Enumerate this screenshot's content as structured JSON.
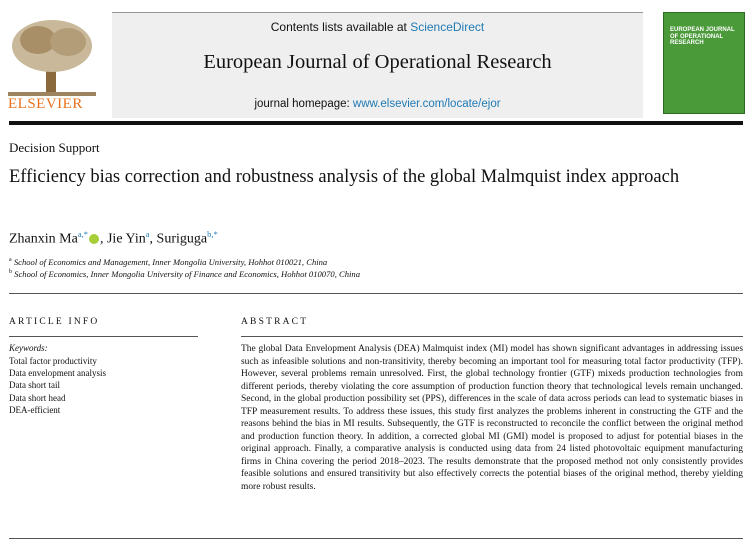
{
  "header": {
    "contents_prefix": "Contents lists available at",
    "contents_link": "ScienceDirect",
    "journal": "European Journal of Operational Research",
    "homepage_prefix": "journal homepage:",
    "homepage_url": "www.elsevier.com/locate/ejor",
    "publisher": "ELSEVIER",
    "cover_title": "EUROPEAN JOURNAL OF OPERATIONAL RESEARCH"
  },
  "article": {
    "section": "Decision Support",
    "title": "Efficiency bias correction and robustness analysis of the global Malmquist index approach",
    "authors": [
      {
        "name": "Zhanxin Ma",
        "affil": "a,*"
      },
      {
        "name": "Jie Yin",
        "affil": "a"
      },
      {
        "name": "Suriguga",
        "affil": "b,*"
      }
    ],
    "affiliations": [
      {
        "key": "a",
        "text": "School of Economics and Management, Inner Mongolia University, Hohhot 010021, China"
      },
      {
        "key": "b",
        "text": "School of Economics, Inner Mongolia University of Finance and Economics, Hohhot 010070, China"
      }
    ]
  },
  "article_info": {
    "heading": "ARTICLE INFO",
    "keywords_label": "Keywords:",
    "keywords": [
      "Total factor productivity",
      "Data envelopment analysis",
      "Data short tail",
      "Data short head",
      "DEA-efficient"
    ]
  },
  "abstract": {
    "heading": "ABSTRACT",
    "text": "The global Data Envelopment Analysis (DEA) Malmquist index (MI) model has shown significant advantages in addressing issues such as infeasible solutions and non-transitivity, thereby becoming an important tool for measuring total factor productivity (TFP). However, several problems remain unresolved. First, the global technology frontier (GTF) mixeds production technologies from different periods, thereby violating the core assumption of production function theory that technological levels remain unchanged. Second, in the global production possibility set (PPS), differences in the scale of data across periods can lead to systematic biases in TFP measurement results. To address these issues, this study first analyzes the problems inherent in constructing the GTF and the reasons behind the bias in MI results. Subsequently, the GTF is reconstructed to reconcile the conflict between the original method and production function theory. In addition, a corrected global MI (GMI) model is proposed to adjust for potential biases in the original approach. Finally, a comparative analysis is conducted using data from 24 listed photovoltaic equipment manufacturing firms in China covering the period 2018–2023. The results demonstrate that the proposed method not only consistently provides feasible solutions and ensured transitivity but also effectively corrects the potential biases of the original method, thereby yielding more robust results."
  }
}
